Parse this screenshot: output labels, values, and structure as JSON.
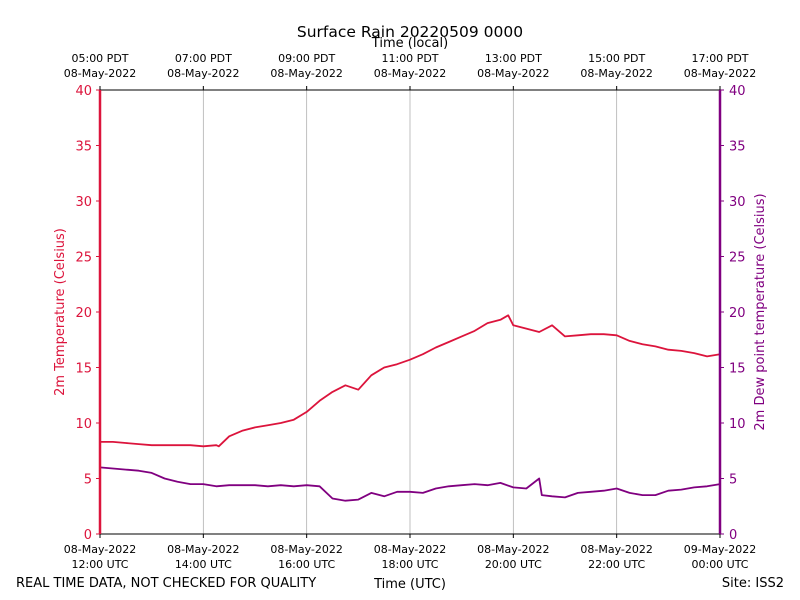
{
  "chart_data": {
    "type": "line",
    "title": "Surface Rain 20220509 0000",
    "top_axis_title": "Time (local)",
    "xlabel": "Time (UTC)",
    "ylabel_left": "2m Temperature (Celsius)",
    "ylabel_right": "2m Dew point temperature (Celsius)",
    "ylim": [
      0,
      40
    ],
    "yticks": [
      0,
      5,
      10,
      15,
      20,
      25,
      30,
      35,
      40
    ],
    "xlim": [
      12,
      24
    ],
    "grid": "vertical",
    "bottom_ticks": [
      {
        "hour": 12,
        "line1": "08-May-2022",
        "line2": "12:00 UTC"
      },
      {
        "hour": 14,
        "line1": "08-May-2022",
        "line2": "14:00 UTC"
      },
      {
        "hour": 16,
        "line1": "08-May-2022",
        "line2": "16:00 UTC"
      },
      {
        "hour": 18,
        "line1": "08-May-2022",
        "line2": "18:00 UTC"
      },
      {
        "hour": 20,
        "line1": "08-May-2022",
        "line2": "20:00 UTC"
      },
      {
        "hour": 22,
        "line1": "08-May-2022",
        "line2": "22:00 UTC"
      },
      {
        "hour": 24,
        "line1": "09-May-2022",
        "line2": "00:00 UTC"
      }
    ],
    "top_ticks": [
      {
        "hour": 12,
        "line1": "05:00 PDT",
        "line2": "08-May-2022"
      },
      {
        "hour": 14,
        "line1": "07:00 PDT",
        "line2": "08-May-2022"
      },
      {
        "hour": 16,
        "line1": "09:00 PDT",
        "line2": "08-May-2022"
      },
      {
        "hour": 18,
        "line1": "11:00 PDT",
        "line2": "08-May-2022"
      },
      {
        "hour": 20,
        "line1": "13:00 PDT",
        "line2": "08-May-2022"
      },
      {
        "hour": 22,
        "line1": "15:00 PDT",
        "line2": "08-May-2022"
      },
      {
        "hour": 24,
        "line1": "17:00 PDT",
        "line2": "08-May-2022"
      }
    ],
    "series": [
      {
        "name": "2m Temperature",
        "color": "#dc143c",
        "x": [
          12.0,
          12.25,
          12.5,
          12.75,
          13.0,
          13.25,
          13.5,
          13.75,
          14.0,
          14.25,
          14.3,
          14.5,
          14.75,
          15.0,
          15.25,
          15.5,
          15.75,
          16.0,
          16.25,
          16.5,
          16.75,
          17.0,
          17.25,
          17.5,
          17.75,
          18.0,
          18.25,
          18.5,
          18.75,
          19.0,
          19.25,
          19.5,
          19.75,
          19.9,
          20.0,
          20.25,
          20.5,
          20.75,
          21.0,
          21.25,
          21.5,
          21.75,
          22.0,
          22.25,
          22.5,
          22.75,
          23.0,
          23.25,
          23.5,
          23.75,
          24.0
        ],
        "values": [
          8.3,
          8.3,
          8.2,
          8.1,
          8.0,
          8.0,
          8.0,
          8.0,
          7.9,
          8.0,
          7.9,
          8.8,
          9.3,
          9.6,
          9.8,
          10.0,
          10.3,
          11.0,
          12.0,
          12.8,
          13.4,
          13.0,
          14.3,
          15.0,
          15.3,
          15.7,
          16.2,
          16.8,
          17.3,
          17.8,
          18.3,
          19.0,
          19.3,
          19.7,
          18.8,
          18.5,
          18.2,
          18.8,
          17.8,
          17.9,
          18.0,
          18.0,
          17.9,
          17.4,
          17.1,
          16.9,
          16.6,
          16.5,
          16.3,
          16.0,
          16.2
        ]
      },
      {
        "name": "2m Dew point temperature",
        "color": "#800080",
        "x": [
          12.0,
          12.25,
          12.5,
          12.75,
          13.0,
          13.25,
          13.5,
          13.75,
          14.0,
          14.25,
          14.5,
          14.75,
          15.0,
          15.25,
          15.5,
          15.75,
          16.0,
          16.25,
          16.5,
          16.75,
          17.0,
          17.25,
          17.5,
          17.75,
          18.0,
          18.25,
          18.5,
          18.75,
          19.0,
          19.25,
          19.5,
          19.75,
          20.0,
          20.25,
          20.5,
          20.55,
          20.75,
          21.0,
          21.25,
          21.5,
          21.75,
          22.0,
          22.25,
          22.5,
          22.75,
          23.0,
          23.25,
          23.5,
          23.75,
          24.0
        ],
        "values": [
          6.0,
          5.9,
          5.8,
          5.7,
          5.5,
          5.0,
          4.7,
          4.5,
          4.5,
          4.3,
          4.4,
          4.4,
          4.4,
          4.3,
          4.4,
          4.3,
          4.4,
          4.3,
          3.2,
          3.0,
          3.1,
          3.7,
          3.4,
          3.8,
          3.8,
          3.7,
          4.1,
          4.3,
          4.4,
          4.5,
          4.4,
          4.6,
          4.2,
          4.1,
          5.0,
          3.5,
          3.4,
          3.3,
          3.7,
          3.8,
          3.9,
          4.1,
          3.7,
          3.5,
          3.5,
          3.9,
          4.0,
          4.2,
          4.3,
          4.5
        ]
      }
    ]
  },
  "footer": {
    "disclaimer": "REAL TIME DATA, NOT CHECKED FOR QUALITY",
    "site": "Site: ISS2"
  }
}
